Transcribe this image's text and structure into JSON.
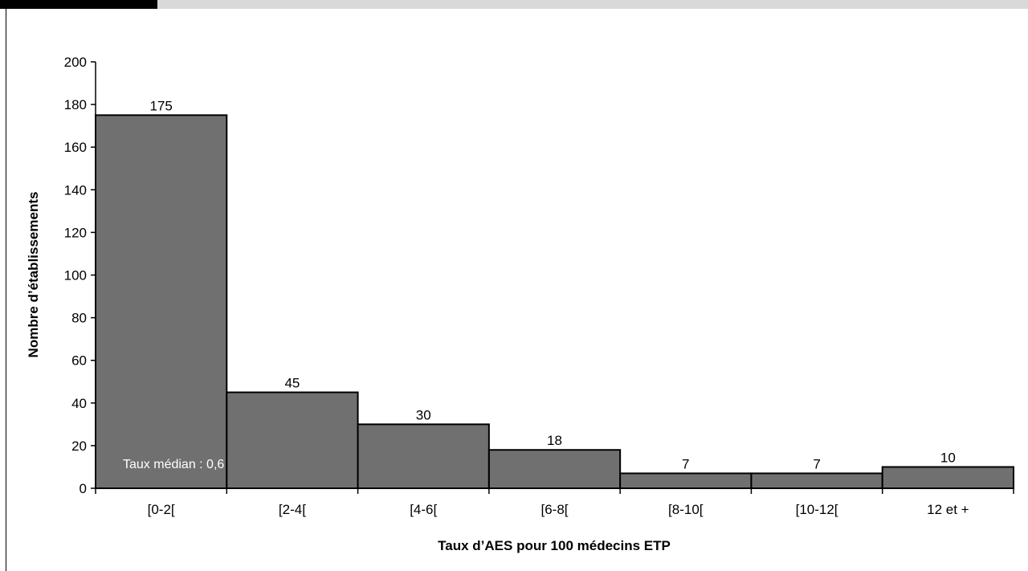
{
  "chart_data": {
    "type": "bar",
    "categories": [
      "[0-2[",
      "[2-4[",
      "[4-6[",
      "[6-8[",
      "[8-10[",
      "[10-12[",
      "12 et +"
    ],
    "values": [
      175,
      45,
      30,
      18,
      7,
      7,
      10
    ],
    "xlabel": "Taux d’AES pour 100 médecins ETP",
    "ylabel": "Nombre d’établissements",
    "ylim": [
      0,
      200
    ],
    "yticks": [
      0,
      20,
      40,
      60,
      80,
      100,
      120,
      140,
      160,
      180,
      200
    ],
    "grid": false,
    "bar_color": "#707070",
    "annotation": "Taux médian : 0,6"
  }
}
